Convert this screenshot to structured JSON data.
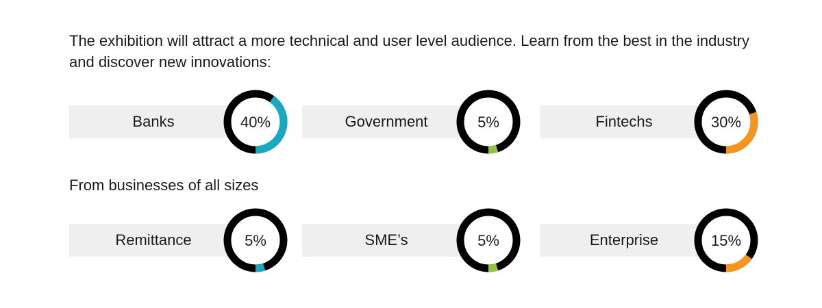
{
  "intro": "The exhibition will attract a more technical and user level audience. Learn from the best in the industry and discover new innovations:",
  "section_label": "From businesses of all sizes",
  "chart_data": [
    {
      "type": "donut",
      "label": "Banks",
      "value": 40,
      "display": "40%",
      "color": "#17a9bf"
    },
    {
      "type": "donut",
      "label": "Government",
      "value": 5,
      "display": "5%",
      "color": "#8dc63f"
    },
    {
      "type": "donut",
      "label": "Fintechs",
      "value": 30,
      "display": "30%",
      "color": "#f7941d"
    },
    {
      "type": "donut",
      "label": "Remittance",
      "value": 5,
      "display": "5%",
      "color": "#17a9bf"
    },
    {
      "type": "donut",
      "label": "SME’s",
      "value": 5,
      "display": "5%",
      "color": "#8dc63f"
    },
    {
      "type": "donut",
      "label": "Enterprise",
      "value": 15,
      "display": "15%",
      "color": "#f7941d"
    }
  ],
  "ring_color": "#000000"
}
